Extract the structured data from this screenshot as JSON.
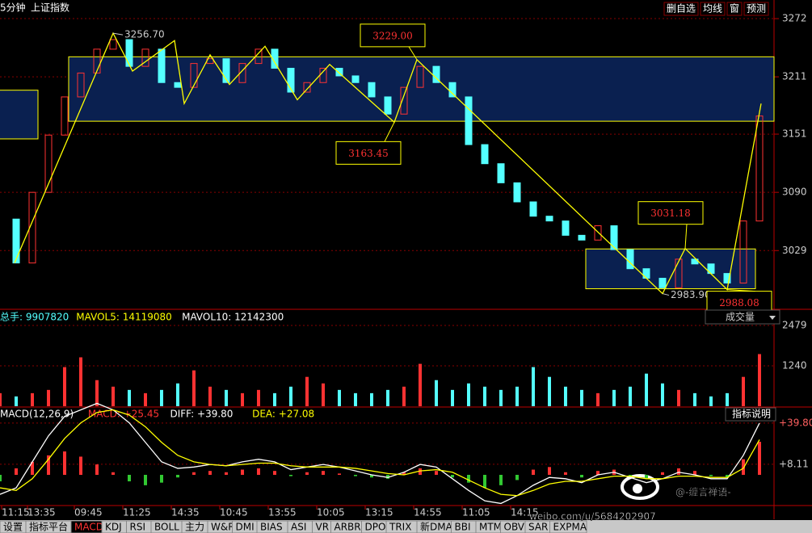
{
  "toolbar": {
    "period": "5分钟",
    "symbol": "上证指数",
    "buttons": [
      "删自选",
      "均线",
      "窗",
      "预测"
    ]
  },
  "price": {
    "ylim": [
      2970,
      3291.5
    ],
    "xlim": [
      0,
      236
    ],
    "yticks": [
      3029,
      3090,
      3151,
      3211,
      3272
    ],
    "x": [
      0,
      5,
      10,
      15,
      20,
      25,
      30,
      35,
      40,
      45,
      50,
      55,
      60,
      65,
      70,
      75,
      80,
      85,
      90,
      95,
      100,
      105,
      110,
      115,
      120,
      125,
      130,
      135,
      140,
      145,
      150,
      155,
      160,
      165,
      170,
      175,
      180,
      185,
      190,
      195,
      200,
      205,
      210,
      215,
      220,
      225,
      230,
      235
    ],
    "closes": [
      3062,
      3016,
      3090,
      3150,
      3190,
      3215,
      3240,
      3250,
      3222,
      3240,
      3205,
      3200,
      3225,
      3230,
      3205,
      3225,
      3240,
      3220,
      3195,
      3205,
      3220,
      3212,
      3205,
      3190,
      3172,
      3200,
      3222,
      3205,
      3190,
      3140,
      3120,
      3100,
      3080,
      3065,
      3060,
      3045,
      3040,
      3055,
      3030,
      3010,
      3000,
      2990,
      3020,
      3015,
      3005,
      2995,
      3060,
      3170
    ],
    "zigzag": {
      "x": [
        4.5,
        35,
        41,
        54,
        57,
        65,
        71,
        82,
        92,
        102,
        122,
        129,
        205,
        212,
        225,
        235.5
      ],
      "values": [
        3016,
        3256.7,
        3217,
        3249,
        3183,
        3234,
        3203,
        3243,
        3187,
        3224,
        3163.45,
        3229,
        2983.9,
        3031.18,
        2988.08,
        3183
      ]
    },
    "annotations": [
      {
        "label": "3256.70",
        "x": 35,
        "value": 3256.7,
        "style": "plain"
      },
      {
        "label": "3229.00",
        "x": 129,
        "value": 3229,
        "style": "boxed"
      },
      {
        "label": "3163.45",
        "x": 122,
        "value": 3163.45,
        "style": "boxed"
      },
      {
        "label": "3031.18",
        "x": 212,
        "value": 3031.18,
        "style": "boxed"
      },
      {
        "label": "2983.90",
        "x": 205,
        "value": 2983.9,
        "style": "plain"
      },
      {
        "label": "2988.08",
        "x": 225,
        "value": 2988.08,
        "style": "boxed"
      }
    ],
    "boxes": [
      {
        "x": [
          -2,
          11.75
        ],
        "range": [
          3146,
          3197
        ]
      },
      {
        "x": [
          21.25,
          239.5
        ],
        "range": [
          3164.5,
          3232
        ]
      },
      {
        "x": [
          181.25,
          233.75
        ],
        "range": [
          2989,
          3030.7
        ]
      }
    ]
  },
  "volume": {
    "header": [
      "总手: 9907820",
      "MAVOL5: 14119080",
      "MAVOL10: 12142300"
    ],
    "selector": "成交量",
    "ylim": [
      0,
      2925
    ],
    "yticks": [
      1240,
      2479
    ],
    "values": [
      400,
      300,
      400,
      500,
      1200,
      1500,
      800,
      600,
      500,
      400,
      500,
      700,
      1100,
      600,
      500,
      400,
      500,
      400,
      600,
      900,
      700,
      500,
      400,
      400,
      500,
      600,
      1300,
      800,
      500,
      700,
      600,
      500,
      600,
      1200,
      900,
      600,
      500,
      400,
      500,
      600,
      1000,
      700,
      500,
      400,
      300,
      400,
      900,
      1600
    ]
  },
  "macd": {
    "header": [
      "MACD(12,26,9)",
      "MACD: +25.45",
      "DIFF: +39.80",
      "DEA: +27.08"
    ],
    "help": "指标说明",
    "ylim": [
      -23,
      49.7
    ],
    "yticks": [
      {
        "value": 8.11,
        "label": "+8.11"
      },
      {
        "value": 39.8,
        "label": "+39.80"
      }
    ],
    "hist": [
      -5,
      5,
      10,
      15,
      18,
      14,
      8,
      2,
      -5,
      -8,
      -6,
      -2,
      2,
      3,
      2,
      4,
      5,
      3,
      -1,
      2,
      3,
      1,
      -1,
      -2,
      -3,
      2,
      5,
      3,
      -2,
      -6,
      -10,
      -8,
      -4,
      4,
      6,
      2,
      -2,
      3,
      4,
      -1,
      -3,
      2,
      5,
      3,
      -1,
      -2,
      12,
      25.45
    ],
    "diff": [
      -15,
      -10,
      10,
      30,
      45,
      50,
      55,
      50,
      40,
      25,
      10,
      5,
      6,
      8,
      7,
      10,
      12,
      10,
      4,
      6,
      8,
      6,
      3,
      0,
      -2,
      2,
      8,
      6,
      -3,
      -12,
      -20,
      -22,
      -16,
      -8,
      -2,
      -3,
      -6,
      0,
      2,
      -2,
      -6,
      -3,
      2,
      0,
      -3,
      -3,
      15,
      39.8
    ],
    "dea": [
      -10,
      -12,
      -3,
      12,
      28,
      40,
      48,
      50,
      46,
      37,
      25,
      15,
      10,
      8,
      7,
      8,
      9,
      9,
      7,
      6,
      6,
      6,
      5,
      3,
      1,
      0,
      3,
      4,
      2,
      -4,
      -10,
      -15,
      -16,
      -12,
      -7,
      -5,
      -5,
      -3,
      -1,
      -1,
      -3,
      -3,
      -1,
      -1,
      -2,
      -2,
      5,
      27.08
    ]
  },
  "time_axis": {
    "ticks": [
      {
        "value": 0.5,
        "label": "11:15"
      },
      {
        "value": 8.5,
        "label": "13:35"
      },
      {
        "value": 23,
        "label": "09:45"
      },
      {
        "value": 38,
        "label": "11:25"
      },
      {
        "value": 53,
        "label": "14:35"
      },
      {
        "value": 68,
        "label": "10:45"
      },
      {
        "value": 83,
        "label": "13:55"
      },
      {
        "value": 98,
        "label": "10:05"
      },
      {
        "value": 113,
        "label": "13:15"
      },
      {
        "value": 128,
        "label": "14:55"
      },
      {
        "value": 143,
        "label": "11:05"
      },
      {
        "value": 158,
        "label": "14:15"
      }
    ]
  },
  "tabs": [
    "设置",
    "指标平台",
    "MACD",
    "KDJ",
    "RSI",
    "BOLL",
    "主力",
    "W&R",
    "DMI",
    "BIAS",
    "ASI",
    "VR",
    "ARBR",
    "DPO",
    "TRIX",
    "新DMA",
    "BBI",
    "MTM",
    "OBV",
    "SAR",
    "EXPMA"
  ],
  "watermark": {
    "handle": "@-缠言禅语-",
    "url": "weibo.com/u/5684202907"
  }
}
